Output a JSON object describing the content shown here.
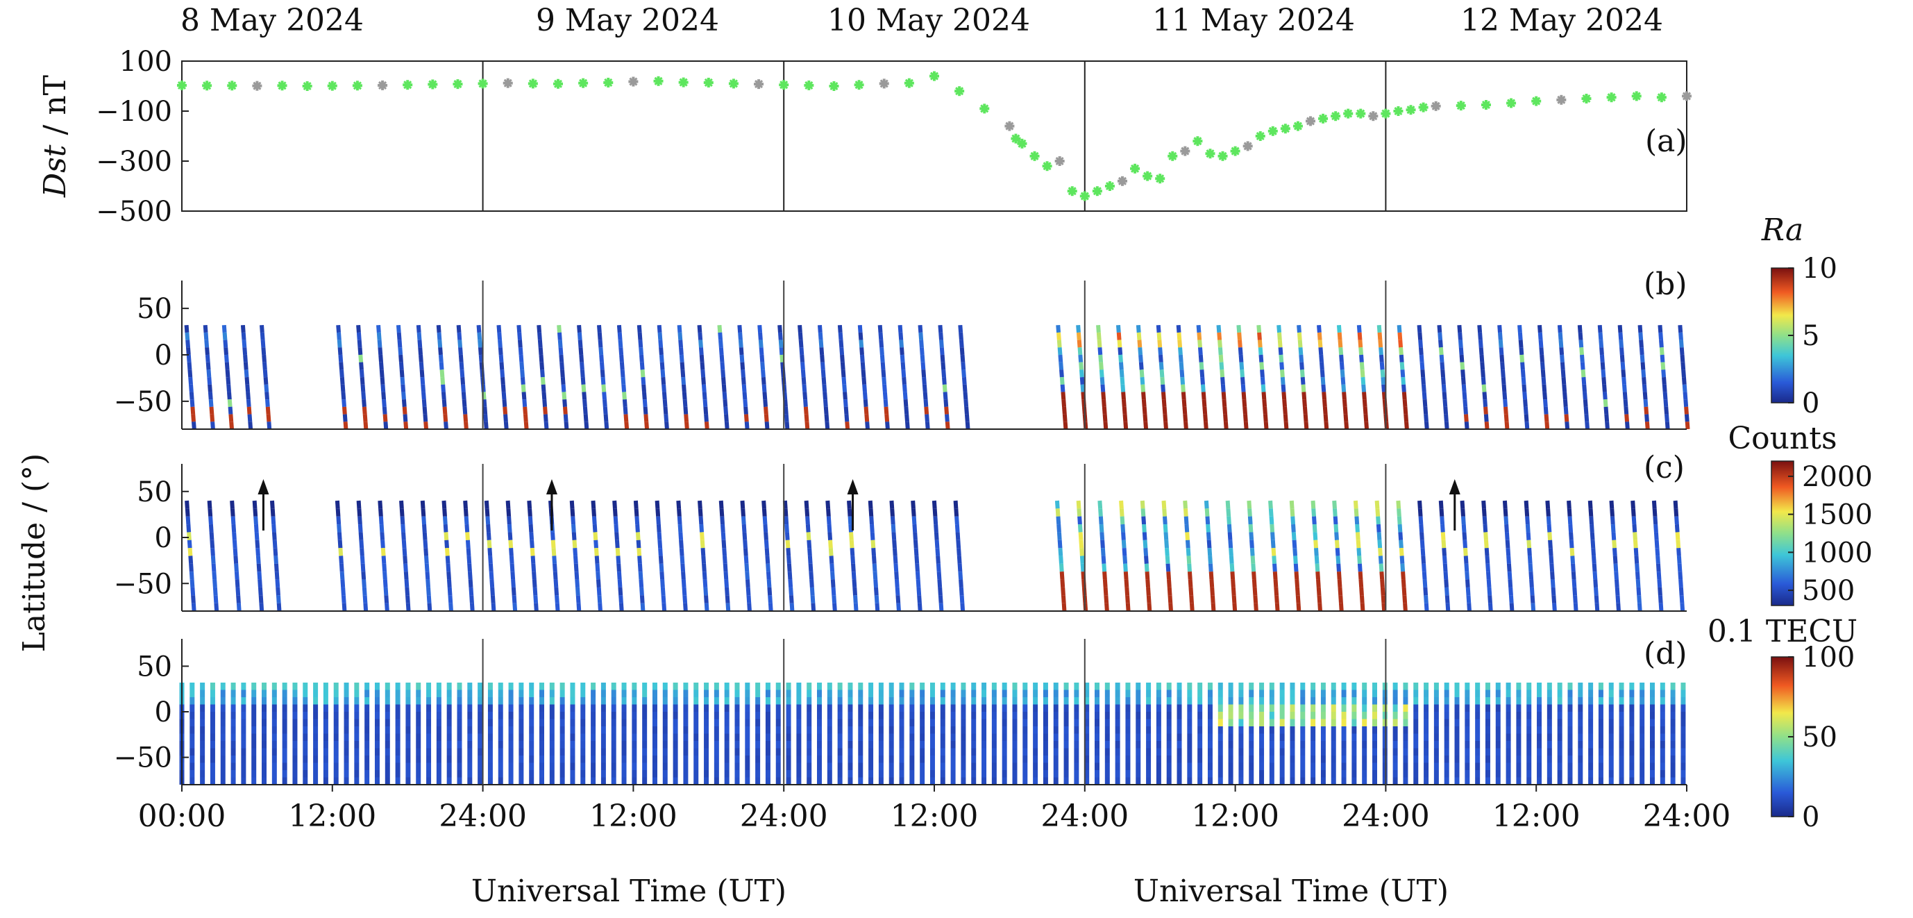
{
  "chart_data": [
    {
      "type": "scatter",
      "panel": "(a)",
      "dates": [
        "8 May 2024",
        "9 May 2024",
        "10 May 2024",
        "11 May 2024",
        "12 May 2024"
      ],
      "ylabel_italic": "Dst",
      "ylabel_rest": " / nT",
      "yticks": [
        "100",
        "−100",
        "−300",
        "−500"
      ],
      "ytick_values": [
        100,
        -100,
        -300,
        -500
      ],
      "ylim": [
        -500,
        100
      ],
      "xlim": [
        0,
        120
      ],
      "x_hours": [
        0,
        2,
        4,
        6,
        8,
        10,
        12,
        14,
        16,
        18,
        20,
        22,
        24,
        26,
        28,
        30,
        32,
        34,
        36,
        38,
        40,
        42,
        44,
        46,
        48,
        50,
        52,
        54,
        56,
        58,
        60,
        62,
        64,
        66,
        66.5,
        67,
        68,
        69,
        70,
        71,
        72,
        73,
        74,
        75,
        76,
        77,
        78,
        79,
        80,
        81,
        82,
        83,
        84,
        85,
        86,
        87,
        88,
        89,
        90,
        91,
        92,
        93,
        94,
        95,
        96,
        97,
        98,
        99,
        100,
        102,
        104,
        106,
        108,
        110,
        112,
        114,
        116,
        118,
        120
      ],
      "y_values": [
        3,
        2,
        2,
        1,
        2,
        0,
        1,
        2,
        3,
        5,
        7,
        8,
        10,
        12,
        10,
        9,
        12,
        14,
        18,
        20,
        15,
        14,
        10,
        8,
        5,
        3,
        0,
        5,
        10,
        12,
        40,
        -20,
        -90,
        -160,
        -210,
        -230,
        -280,
        -320,
        -300,
        -420,
        -440,
        -420,
        -400,
        -380,
        -330,
        -360,
        -370,
        -280,
        -260,
        -220,
        -270,
        -280,
        -260,
        -240,
        -200,
        -180,
        -170,
        -160,
        -140,
        -130,
        -120,
        -110,
        -110,
        -120,
        -110,
        -100,
        -95,
        -85,
        -80,
        -78,
        -75,
        -68,
        -60,
        -55,
        -50,
        -45,
        -40,
        -45,
        -40
      ],
      "series_colors": {
        "point": "#5ee65e",
        "alt_point": "#9a9a9a"
      }
    },
    {
      "type": "heatmap",
      "panel": "(b)",
      "colorbar_title": "Ra",
      "colorbar_ticks": [
        "10",
        "5",
        "0"
      ],
      "colorbar_range": [
        0,
        10
      ],
      "yticks": [
        "50",
        "0",
        "−50"
      ],
      "ytick_values": [
        50,
        0,
        -50
      ],
      "ylim": [
        -80,
        80
      ]
    },
    {
      "type": "heatmap",
      "panel": "(c)",
      "colorbar_title": "Counts",
      "colorbar_ticks": [
        "2000",
        "1500",
        "1000",
        "500"
      ],
      "colorbar_range": [
        300,
        2200
      ],
      "yticks": [
        "50",
        "0",
        "−50"
      ],
      "ytick_values": [
        50,
        0,
        -50
      ],
      "ylim": [
        -80,
        80
      ],
      "arrow_hours": [
        6.5,
        29.5,
        53.5,
        101.5
      ]
    },
    {
      "type": "heatmap",
      "panel": "(d)",
      "colorbar_title": "0.1 TECU",
      "colorbar_ticks": [
        "100",
        "50",
        "0"
      ],
      "colorbar_range": [
        0,
        100
      ],
      "yticks": [
        "50",
        "0",
        "−50"
      ],
      "ytick_values": [
        50,
        0,
        -50
      ],
      "ylim": [
        -80,
        80
      ]
    }
  ],
  "shared": {
    "ylabel_bcd": "Latitude / (°)",
    "xticks": [
      "00:00",
      "12:00",
      "24:00",
      "12:00",
      "24:00",
      "12:00",
      "24:00",
      "12:00",
      "24:00",
      "12:00",
      "24:00"
    ],
    "xtick_hours": [
      0,
      12,
      24,
      36,
      48,
      60,
      72,
      84,
      96,
      108,
      120
    ],
    "xlabel_left": "Universal Time (UT)",
    "xlabel_right": "Universal Time (UT)",
    "day_boundaries_hours": [
      24,
      48,
      72,
      96
    ]
  }
}
